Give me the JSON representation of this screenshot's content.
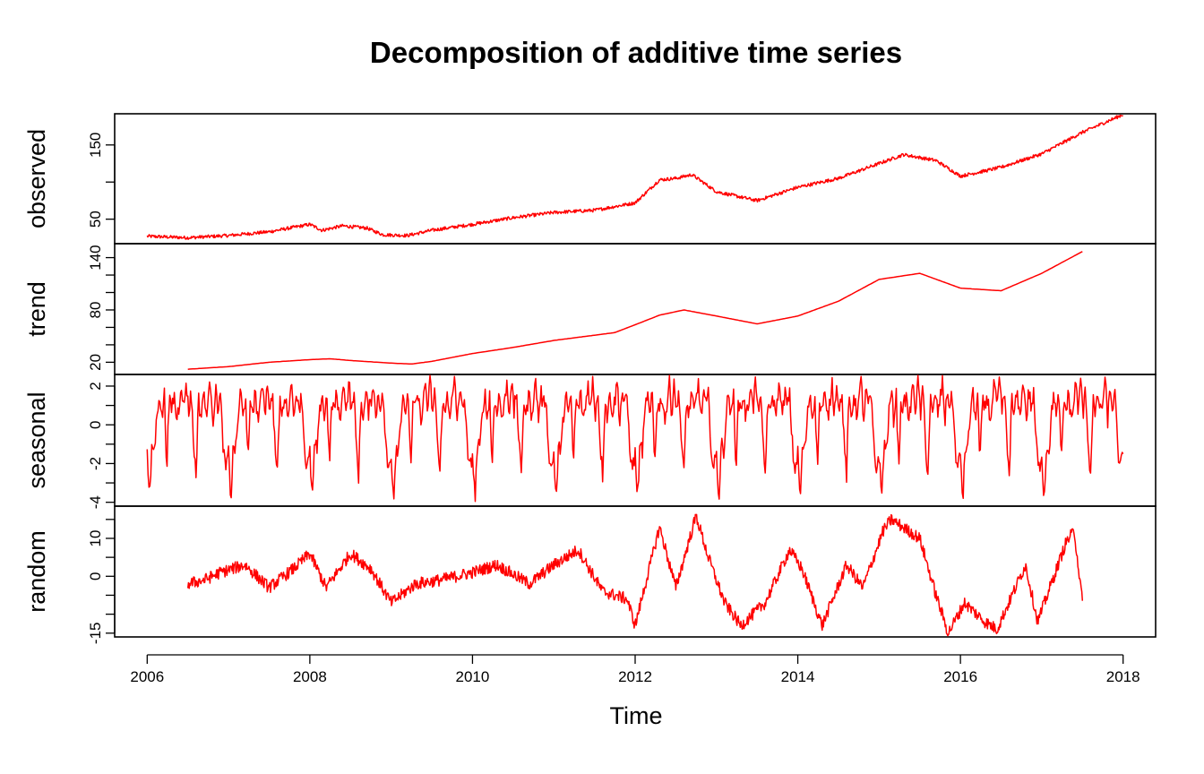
{
  "chart_data": {
    "type": "line",
    "title": "Decomposition of additive time series",
    "xlabel": "Time",
    "xlim": [
      2005.6,
      2018.4
    ],
    "x_ticks": [
      2006,
      2008,
      2010,
      2012,
      2014,
      2016,
      2018
    ],
    "x_tick_labels": [
      "2006",
      "2008",
      "2010",
      "2012",
      "2014",
      "2016",
      "2018"
    ],
    "color": "#ff0000",
    "panels": [
      {
        "name": "observed",
        "ylabel": "observed",
        "ylim": [
          17,
          192
        ],
        "y_ticks": [
          50,
          100,
          150
        ],
        "y_tick_labels": [
          "50",
          "",
          "150"
        ],
        "x": [
          2006.0,
          2006.5,
          2007.0,
          2007.5,
          2008.0,
          2008.15,
          2008.4,
          2008.7,
          2008.9,
          2009.2,
          2009.5,
          2010.0,
          2010.5,
          2011.0,
          2011.5,
          2012.0,
          2012.3,
          2012.5,
          2012.7,
          2013.0,
          2013.5,
          2014.0,
          2014.5,
          2015.0,
          2015.3,
          2015.7,
          2016.0,
          2016.3,
          2016.5,
          2017.0,
          2017.5,
          2018.0
        ],
        "values": [
          27,
          25,
          28,
          33,
          43,
          35,
          41,
          38,
          29,
          28,
          35,
          43,
          52,
          59,
          62,
          72,
          103,
          105,
          110,
          87,
          75,
          93,
          105,
          125,
          137,
          129,
          108,
          115,
          120,
          138,
          167,
          191
        ]
      },
      {
        "name": "trend",
        "ylabel": "trend",
        "ylim": [
          6,
          156
        ],
        "y_ticks": [
          20,
          40,
          60,
          80,
          100,
          120,
          140
        ],
        "y_tick_labels": [
          "20",
          "",
          "",
          "80",
          "",
          "",
          "140"
        ],
        "x": [
          2006.5,
          2007.0,
          2007.5,
          2008.0,
          2008.25,
          2008.5,
          2009.0,
          2009.25,
          2009.5,
          2010.0,
          2010.5,
          2011.0,
          2011.5,
          2011.75,
          2012.0,
          2012.3,
          2012.6,
          2013.0,
          2013.5,
          2014.0,
          2014.5,
          2015.0,
          2015.5,
          2016.0,
          2016.5,
          2017.0,
          2017.5
        ],
        "values": [
          12,
          15,
          20,
          23,
          24,
          22,
          19,
          18,
          21,
          30,
          37,
          45,
          51,
          54,
          63,
          74,
          80,
          73,
          64,
          73,
          90,
          115,
          122,
          105,
          102,
          122,
          147
        ]
      },
      {
        "name": "seasonal",
        "ylabel": "seasonal",
        "ylim": [
          -4.2,
          2.6
        ],
        "y_ticks": [
          -4,
          -3,
          -2,
          -1,
          0,
          1,
          2
        ],
        "y_tick_labels": [
          "-4",
          "",
          "-2",
          "",
          "0",
          "",
          "2"
        ],
        "period": 1,
        "x_start": 2006.0,
        "x_end": 2018.0,
        "cycle_phase": [
          0.0,
          0.03,
          0.06,
          0.09,
          0.12,
          0.15,
          0.18,
          0.21,
          0.24,
          0.27,
          0.3,
          0.33,
          0.36,
          0.39,
          0.42,
          0.45,
          0.48,
          0.51,
          0.54,
          0.57,
          0.6,
          0.63,
          0.66,
          0.69,
          0.72,
          0.75,
          0.78,
          0.81,
          0.84,
          0.87,
          0.9,
          0.93,
          0.96,
          1.0
        ],
        "cycle_values": [
          -1.5,
          -3.9,
          -1.0,
          -1.3,
          0.5,
          1.8,
          0.2,
          1.7,
          -2.2,
          1.2,
          0.8,
          1.6,
          0.3,
          0.9,
          2.3,
          0.6,
          2.4,
          0.5,
          1.9,
          -1.0,
          -2.6,
          1.4,
          0.3,
          1.7,
          0.6,
          1.2,
          2.3,
          0.2,
          1.8,
          0.9,
          1.5,
          -0.8,
          -2.4,
          -1.5
        ]
      },
      {
        "name": "random",
        "ylabel": "random",
        "ylim": [
          -16,
          18.5
        ],
        "y_ticks": [
          -15,
          -10,
          -5,
          0,
          5,
          10,
          15
        ],
        "y_tick_labels": [
          "-15",
          "",
          "",
          "0",
          "",
          "10",
          ""
        ],
        "x": [
          2006.5,
          2006.7,
          2006.9,
          2007.2,
          2007.5,
          2007.8,
          2008.0,
          2008.2,
          2008.5,
          2008.75,
          2009.0,
          2009.3,
          2009.6,
          2010.0,
          2010.3,
          2010.7,
          2011.0,
          2011.3,
          2011.6,
          2011.9,
          2012.0,
          2012.3,
          2012.5,
          2012.75,
          2012.9,
          2013.1,
          2013.3,
          2013.6,
          2013.9,
          2014.05,
          2014.3,
          2014.6,
          2014.8,
          2015.05,
          2015.15,
          2015.5,
          2015.7,
          2015.85,
          2016.05,
          2016.3,
          2016.45,
          2016.8,
          2016.95,
          2017.3,
          2017.4,
          2017.5
        ],
        "values": [
          -2,
          -1,
          1,
          3,
          -3,
          2,
          6,
          -3,
          6,
          2,
          -7,
          -2,
          -1,
          1,
          3,
          -2,
          3,
          7,
          -4,
          -6,
          -13,
          13,
          -3,
          16,
          5,
          -7,
          -13,
          -7,
          7,
          2,
          -13,
          3,
          -3,
          12,
          15,
          10,
          -5,
          -15,
          -7,
          -12,
          -14,
          3,
          -12,
          9,
          12,
          -7
        ]
      }
    ]
  }
}
